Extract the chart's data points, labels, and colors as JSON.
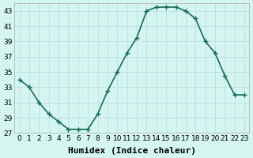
{
  "x": [
    0,
    1,
    2,
    3,
    4,
    5,
    6,
    7,
    8,
    9,
    10,
    11,
    12,
    13,
    14,
    15,
    16,
    17,
    18,
    19,
    20,
    21,
    22,
    23
  ],
  "y": [
    34,
    33,
    31,
    29.5,
    28.5,
    27.5,
    27.5,
    27.5,
    29.5,
    32.5,
    35,
    37.5,
    39.5,
    43,
    43.5,
    43.5,
    43.5,
    43,
    42,
    39,
    37.5,
    34.5,
    32,
    32
  ],
  "xlabel": "Humidex (Indice chaleur)",
  "xlim": [
    -0.5,
    23.5
  ],
  "ylim": [
    27,
    44
  ],
  "yticks": [
    27,
    29,
    31,
    33,
    35,
    37,
    39,
    41,
    43
  ],
  "xticks": [
    0,
    1,
    2,
    3,
    4,
    5,
    6,
    7,
    8,
    9,
    10,
    11,
    12,
    13,
    14,
    15,
    16,
    17,
    18,
    19,
    20,
    21,
    22,
    23
  ],
  "line_color": "#1a6b5a",
  "marker": "+",
  "bg_color": "#d4f5f0",
  "grid_color": "#b8dcd8",
  "xlabel_fontsize": 8,
  "tick_fontsize": 6.5,
  "line_width": 1.2,
  "marker_size": 5,
  "marker_edge_width": 1.0
}
